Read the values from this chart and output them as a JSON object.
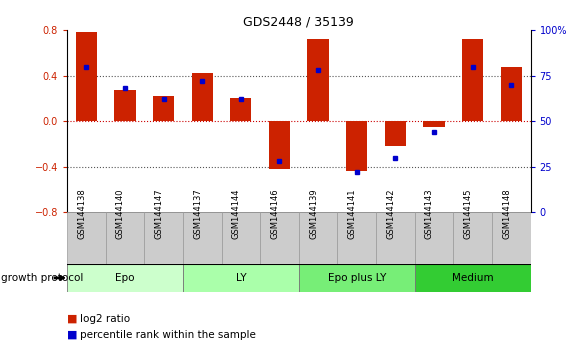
{
  "title": "GDS2448 / 35139",
  "categories": [
    "GSM144138",
    "GSM144140",
    "GSM144147",
    "GSM144137",
    "GSM144144",
    "GSM144146",
    "GSM144139",
    "GSM144141",
    "GSM144142",
    "GSM144143",
    "GSM144145",
    "GSM144148"
  ],
  "log2_ratio": [
    0.78,
    0.27,
    0.22,
    0.42,
    0.2,
    -0.42,
    0.72,
    -0.44,
    -0.22,
    -0.05,
    0.72,
    0.48
  ],
  "percentile_rank": [
    80,
    68,
    62,
    72,
    62,
    28,
    78,
    22,
    30,
    44,
    80,
    70
  ],
  "groups": [
    {
      "label": "Epo",
      "start": 0,
      "end": 3,
      "color": "#ccffcc"
    },
    {
      "label": "LY",
      "start": 3,
      "end": 6,
      "color": "#aaffaa"
    },
    {
      "label": "Epo plus LY",
      "start": 6,
      "end": 9,
      "color": "#77ee77"
    },
    {
      "label": "Medium",
      "start": 9,
      "end": 12,
      "color": "#33cc33"
    }
  ],
  "group_label": "growth protocol",
  "bar_color": "#cc2200",
  "dot_color": "#0000cc",
  "ylim": [
    -0.8,
    0.8
  ],
  "y_ticks_left": [
    -0.8,
    -0.4,
    0.0,
    0.4,
    0.8
  ],
  "y_ticks_right": [
    0,
    25,
    50,
    75,
    100
  ],
  "hlines_dotted": [
    -0.4,
    0.4
  ],
  "hline_red": 0.0,
  "bar_width": 0.55,
  "xlab_bg": "#cccccc",
  "xlab_edge": "#999999"
}
